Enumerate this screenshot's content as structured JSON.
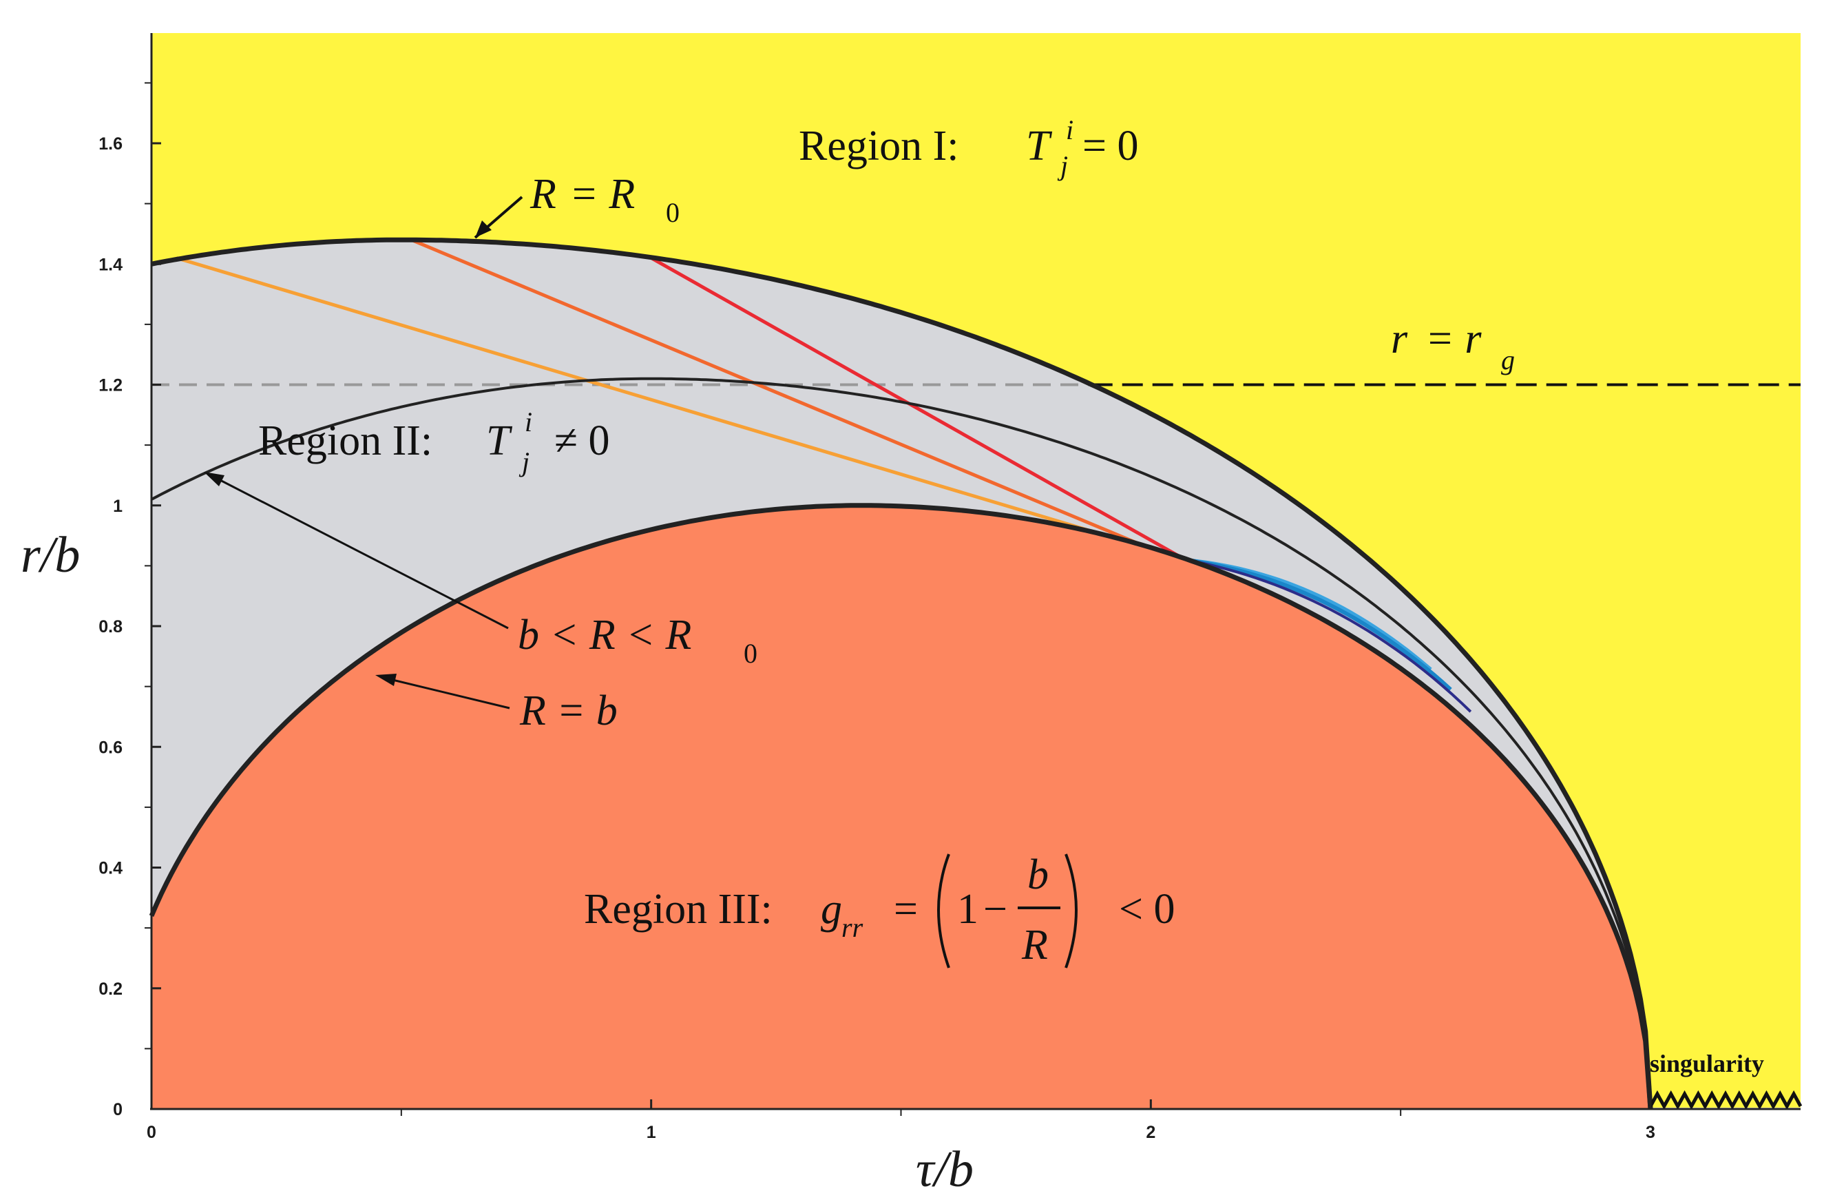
{
  "colors": {
    "region_I": "#fff541",
    "region_II": "#d6d7db",
    "region_III": "#fd865f",
    "boundary": "#222222",
    "rg_line": "#111111",
    "rg_line_inside": "#999999",
    "family": [
      "#f7a035",
      "#f2682e",
      "#ea2a33",
      "#3aa4e0",
      "#1a86c9",
      "#2c2d8a"
    ]
  },
  "axes": {
    "x_title": "τ/b",
    "y_title": "r/b",
    "x_ticks": [
      "0",
      "1",
      "2",
      "3"
    ],
    "y_ticks": [
      "0",
      "0.2",
      "0.4",
      "0.6",
      "0.8",
      "1",
      "1.2",
      "1.4",
      "1.6"
    ],
    "xlim": [
      0,
      3.3
    ],
    "ylim": [
      0,
      1.78
    ]
  },
  "annotations": {
    "region_I": {
      "label": "Region I:",
      "T": "T",
      "sup": "i",
      "sub": "j",
      "rel": "= 0"
    },
    "region_II": {
      "label": "Region II:",
      "T": "T",
      "sup": "i",
      "sub": "j",
      "rel": "≠ 0"
    },
    "region_III": {
      "label": "Region III:",
      "g": "g",
      "g_sub": "rr",
      "eq": "=",
      "one": "1",
      "minus": "−",
      "num": "b",
      "den": "R",
      "rel": "< 0"
    },
    "R_eq_R0": {
      "lhs": "R",
      "eq": "= R",
      "sub": "0"
    },
    "r_eq_rg": {
      "lhs": "r",
      "eq": "= r",
      "sub": "g"
    },
    "b_lt_R": {
      "text": "b < R < R",
      "sub": "0"
    },
    "R_eq_b": {
      "text": "R = b"
    },
    "singularity": "singularity"
  },
  "chart_data": {
    "type": "line",
    "x_axis": "τ/b",
    "y_axis": "r/b",
    "r_g": 1.2,
    "curves": [
      {
        "id": "R_eq_R0",
        "description_label": "R = R_0",
        "tau_range": [
          0,
          3.0
        ],
        "peak_tau": 0.5,
        "peak_r": 1.44,
        "r_at_0": 1.4
      },
      {
        "id": "b_lt_R_lt_R0",
        "description_label": "b < R < R_0",
        "tau_range": [
          0,
          3.0
        ],
        "peak_tau": 1.0,
        "peak_r": 1.21,
        "r_at_0": 1.01
      },
      {
        "id": "R_eq_b",
        "description_label": "R = b",
        "tau_range": [
          0,
          3.0
        ],
        "peak_tau": 1.42,
        "peak_r": 1.0,
        "r_at_0": 0.32
      }
    ],
    "trajectories": [
      {
        "start_tau": 0.05,
        "start_r": 1.41
      },
      {
        "start_tau": 0.52,
        "start_r": 1.44
      },
      {
        "start_tau": 1.0,
        "start_r": 1.41
      }
    ]
  }
}
